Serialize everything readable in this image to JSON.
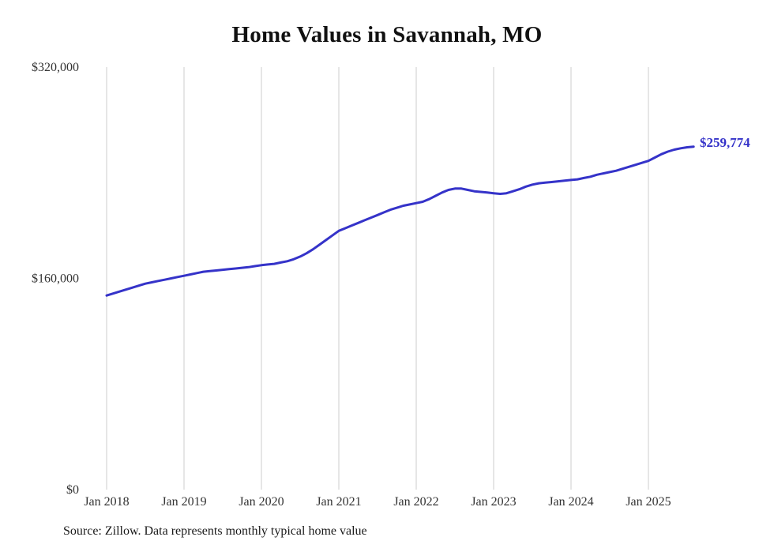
{
  "title": "Home Values in Savannah, MO",
  "source_note": "Source: Zillow. Data represents monthly typical home value",
  "colors": {
    "line": "#3533c9",
    "grid": "#cccccc",
    "text": "#333333"
  },
  "chart_data": {
    "type": "line",
    "title": "Home Values in Savannah, MO",
    "xlabel": "",
    "ylabel": "",
    "ylim": [
      0,
      320000
    ],
    "grid": "vertical-only",
    "legend": "none",
    "yticks": [
      {
        "value": 0,
        "label": "$0"
      },
      {
        "value": 160000,
        "label": "$160,000"
      },
      {
        "value": 320000,
        "label": "$320,000"
      }
    ],
    "xticks": [
      "Jan 2018",
      "Jan 2019",
      "Jan 2020",
      "Jan 2021",
      "Jan 2022",
      "Jan 2023",
      "Jan 2024",
      "Jan 2025"
    ],
    "last_value": 259774,
    "last_value_label": "$259,774",
    "series": [
      {
        "name": "Typical home value",
        "x": [
          "2018-01",
          "2018-02",
          "2018-03",
          "2018-04",
          "2018-05",
          "2018-06",
          "2018-07",
          "2018-08",
          "2018-09",
          "2018-10",
          "2018-11",
          "2018-12",
          "2019-01",
          "2019-02",
          "2019-03",
          "2019-04",
          "2019-05",
          "2019-06",
          "2019-07",
          "2019-08",
          "2019-09",
          "2019-10",
          "2019-11",
          "2019-12",
          "2020-01",
          "2020-02",
          "2020-03",
          "2020-04",
          "2020-05",
          "2020-06",
          "2020-07",
          "2020-08",
          "2020-09",
          "2020-10",
          "2020-11",
          "2020-12",
          "2021-01",
          "2021-02",
          "2021-03",
          "2021-04",
          "2021-05",
          "2021-06",
          "2021-07",
          "2021-08",
          "2021-09",
          "2021-10",
          "2021-11",
          "2021-12",
          "2022-01",
          "2022-02",
          "2022-03",
          "2022-04",
          "2022-05",
          "2022-06",
          "2022-07",
          "2022-08",
          "2022-09",
          "2022-10",
          "2022-11",
          "2022-12",
          "2023-01",
          "2023-02",
          "2023-03",
          "2023-04",
          "2023-05",
          "2023-06",
          "2023-07",
          "2023-08",
          "2023-09",
          "2023-10",
          "2023-11",
          "2023-12",
          "2024-01",
          "2024-02",
          "2024-03",
          "2024-04",
          "2024-05",
          "2024-06",
          "2024-07",
          "2024-08",
          "2024-09",
          "2024-10",
          "2024-11",
          "2024-12",
          "2025-01",
          "2025-02",
          "2025-03",
          "2025-04",
          "2025-05",
          "2025-06",
          "2025-07",
          "2025-08"
        ],
        "values": [
          147000,
          148500,
          150000,
          151500,
          153000,
          154500,
          156000,
          157000,
          158000,
          159000,
          160000,
          161000,
          162000,
          163000,
          164000,
          165000,
          165500,
          166000,
          166500,
          167000,
          167500,
          168000,
          168500,
          169300,
          170000,
          170500,
          171000,
          172000,
          173000,
          174500,
          176500,
          179000,
          182000,
          185500,
          189000,
          192500,
          196000,
          198000,
          200000,
          202000,
          204000,
          206000,
          208000,
          210000,
          212000,
          213500,
          215000,
          216000,
          217000,
          218000,
          220000,
          222500,
          225000,
          227000,
          228000,
          228000,
          227000,
          226000,
          225500,
          225000,
          224500,
          224000,
          224500,
          226000,
          227500,
          229500,
          231000,
          232000,
          232500,
          233000,
          233500,
          234000,
          234500,
          235000,
          236000,
          237000,
          238500,
          239500,
          240500,
          241500,
          243000,
          244500,
          246000,
          247500,
          249000,
          251500,
          254000,
          256000,
          257500,
          258500,
          259300,
          259774
        ]
      }
    ]
  }
}
